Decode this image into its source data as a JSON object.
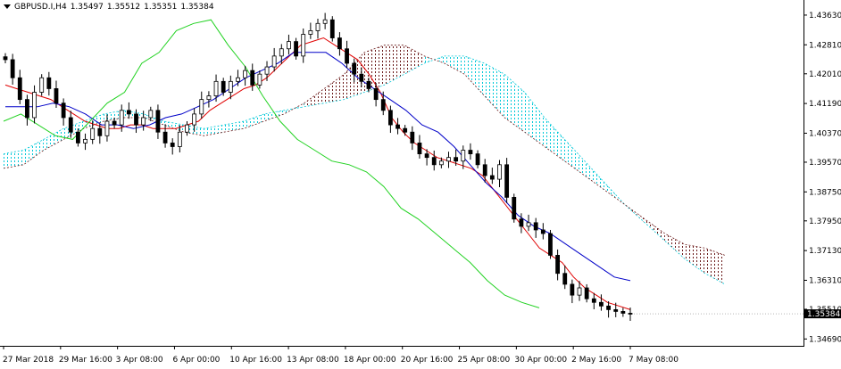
{
  "header": {
    "symbol": "GBPUSD.I,H4",
    "open": "1.35497",
    "high": "1.35512",
    "low": "1.35351",
    "close": "1.35384"
  },
  "colors": {
    "background": "#ffffff",
    "tenkan": "#e00000",
    "kijun": "#0000c8",
    "chikou": "#22d222",
    "cloud_bull": "#00c8d8",
    "cloud_bear": "#6a1a1a",
    "last_price_bg": "#000000"
  },
  "chart_data": {
    "type": "line",
    "indicator": "Ichimoku Kinko Hyo",
    "y_ticks": [
      "1.43630",
      "1.42810",
      "1.42010",
      "1.41190",
      "1.40370",
      "1.39570",
      "1.38750",
      "1.37950",
      "1.37130",
      "1.36310",
      "1.35510",
      "1.34690"
    ],
    "x_ticks": [
      "27 Mar 2018",
      "29 Mar 16:00",
      "3 Apr 08:00",
      "6 Apr 00:00",
      "10 Apr 16:00",
      "13 Apr 08:00",
      "18 Apr 00:00",
      "20 Apr 16:00",
      "25 Apr 08:00",
      "30 Apr 00:00",
      "2 May 16:00",
      "7 May 08:00"
    ],
    "ylim": [
      1.3455,
      1.4385
    ],
    "last_price": "1.35384",
    "price_label_hidden": "1.35510",
    "close_series": [
      1.424,
      1.419,
      1.413,
      1.408,
      1.415,
      1.419,
      1.416,
      1.412,
      1.408,
      1.404,
      1.401,
      1.402,
      1.405,
      1.403,
      1.407,
      1.406,
      1.41,
      1.409,
      1.406,
      1.408,
      1.41,
      1.404,
      1.401,
      1.4,
      1.404,
      1.406,
      1.409,
      1.413,
      1.414,
      1.418,
      1.415,
      1.418,
      1.419,
      1.421,
      1.417,
      1.42,
      1.422,
      1.425,
      1.427,
      1.429,
      1.425,
      1.431,
      1.432,
      1.434,
      1.435,
      1.43,
      1.427,
      1.423,
      1.42,
      1.418,
      1.416,
      1.413,
      1.41,
      1.406,
      1.405,
      1.404,
      1.401,
      1.398,
      1.397,
      1.395,
      1.396,
      1.397,
      1.396,
      1.399,
      1.398,
      1.395,
      1.392,
      1.391,
      1.395,
      1.386,
      1.38,
      1.378,
      1.379,
      1.377,
      1.376,
      1.37,
      1.365,
      1.362,
      1.359,
      1.361,
      1.358,
      1.357,
      1.356,
      1.355,
      1.3545,
      1.354,
      1.3538
    ],
    "tenkan_series": [
      1.417,
      1.416,
      1.415,
      1.414,
      1.413,
      1.411,
      1.409,
      1.407,
      1.406,
      1.405,
      1.405,
      1.406,
      1.406,
      1.405,
      1.405,
      1.405,
      1.406,
      1.407,
      1.41,
      1.412,
      1.414,
      1.416,
      1.417,
      1.419,
      1.422,
      1.425,
      1.428,
      1.429,
      1.43,
      1.428,
      1.426,
      1.424,
      1.42,
      1.415,
      1.408,
      1.404,
      1.401,
      1.399,
      1.397,
      1.396,
      1.395,
      1.394,
      1.392,
      1.388,
      1.384,
      1.38,
      1.376,
      1.372,
      1.37,
      1.368,
      1.364,
      1.361,
      1.359,
      1.357,
      1.356,
      1.355
    ],
    "kijun_series": [
      1.411,
      1.411,
      1.411,
      1.412,
      1.411,
      1.409,
      1.406,
      1.406,
      1.405,
      1.406,
      1.408,
      1.409,
      1.411,
      1.413,
      1.416,
      1.419,
      1.421,
      1.423,
      1.426,
      1.426,
      1.426,
      1.423,
      1.419,
      1.416,
      1.413,
      1.41,
      1.406,
      1.404,
      1.4,
      1.395,
      1.39,
      1.386,
      1.381,
      1.378,
      1.376,
      1.373,
      1.37,
      1.367,
      1.364,
      1.363
    ],
    "chikou_series": [
      1.407,
      1.409,
      1.406,
      1.403,
      1.402,
      1.407,
      1.412,
      1.415,
      1.423,
      1.426,
      1.432,
      1.434,
      1.435,
      1.428,
      1.422,
      1.414,
      1.407,
      1.402,
      1.399,
      1.396,
      1.395,
      1.393,
      1.389,
      1.383,
      1.38,
      1.376,
      1.372,
      1.368,
      1.363,
      1.359,
      1.357,
      1.3555
    ],
    "senkou_a_series": [
      1.398,
      1.399,
      1.402,
      1.405,
      1.407,
      1.409,
      1.41,
      1.409,
      1.407,
      1.406,
      1.405,
      1.406,
      1.407,
      1.409,
      1.41,
      1.411,
      1.412,
      1.413,
      1.415,
      1.417,
      1.42,
      1.423,
      1.425,
      1.425,
      1.423,
      1.42,
      1.415,
      1.408,
      1.402,
      1.396,
      1.39,
      1.384,
      1.379,
      1.374,
      1.369,
      1.365,
      1.362
    ],
    "senkou_b_series": [
      1.394,
      1.395,
      1.399,
      1.402,
      1.405,
      1.407,
      1.408,
      1.408,
      1.406,
      1.404,
      1.403,
      1.404,
      1.405,
      1.407,
      1.409,
      1.412,
      1.416,
      1.42,
      1.426,
      1.428,
      1.428,
      1.425,
      1.423,
      1.42,
      1.414,
      1.408,
      1.404,
      1.4,
      1.396,
      1.392,
      1.388,
      1.384,
      1.38,
      1.376,
      1.373,
      1.372,
      1.37
    ]
  }
}
